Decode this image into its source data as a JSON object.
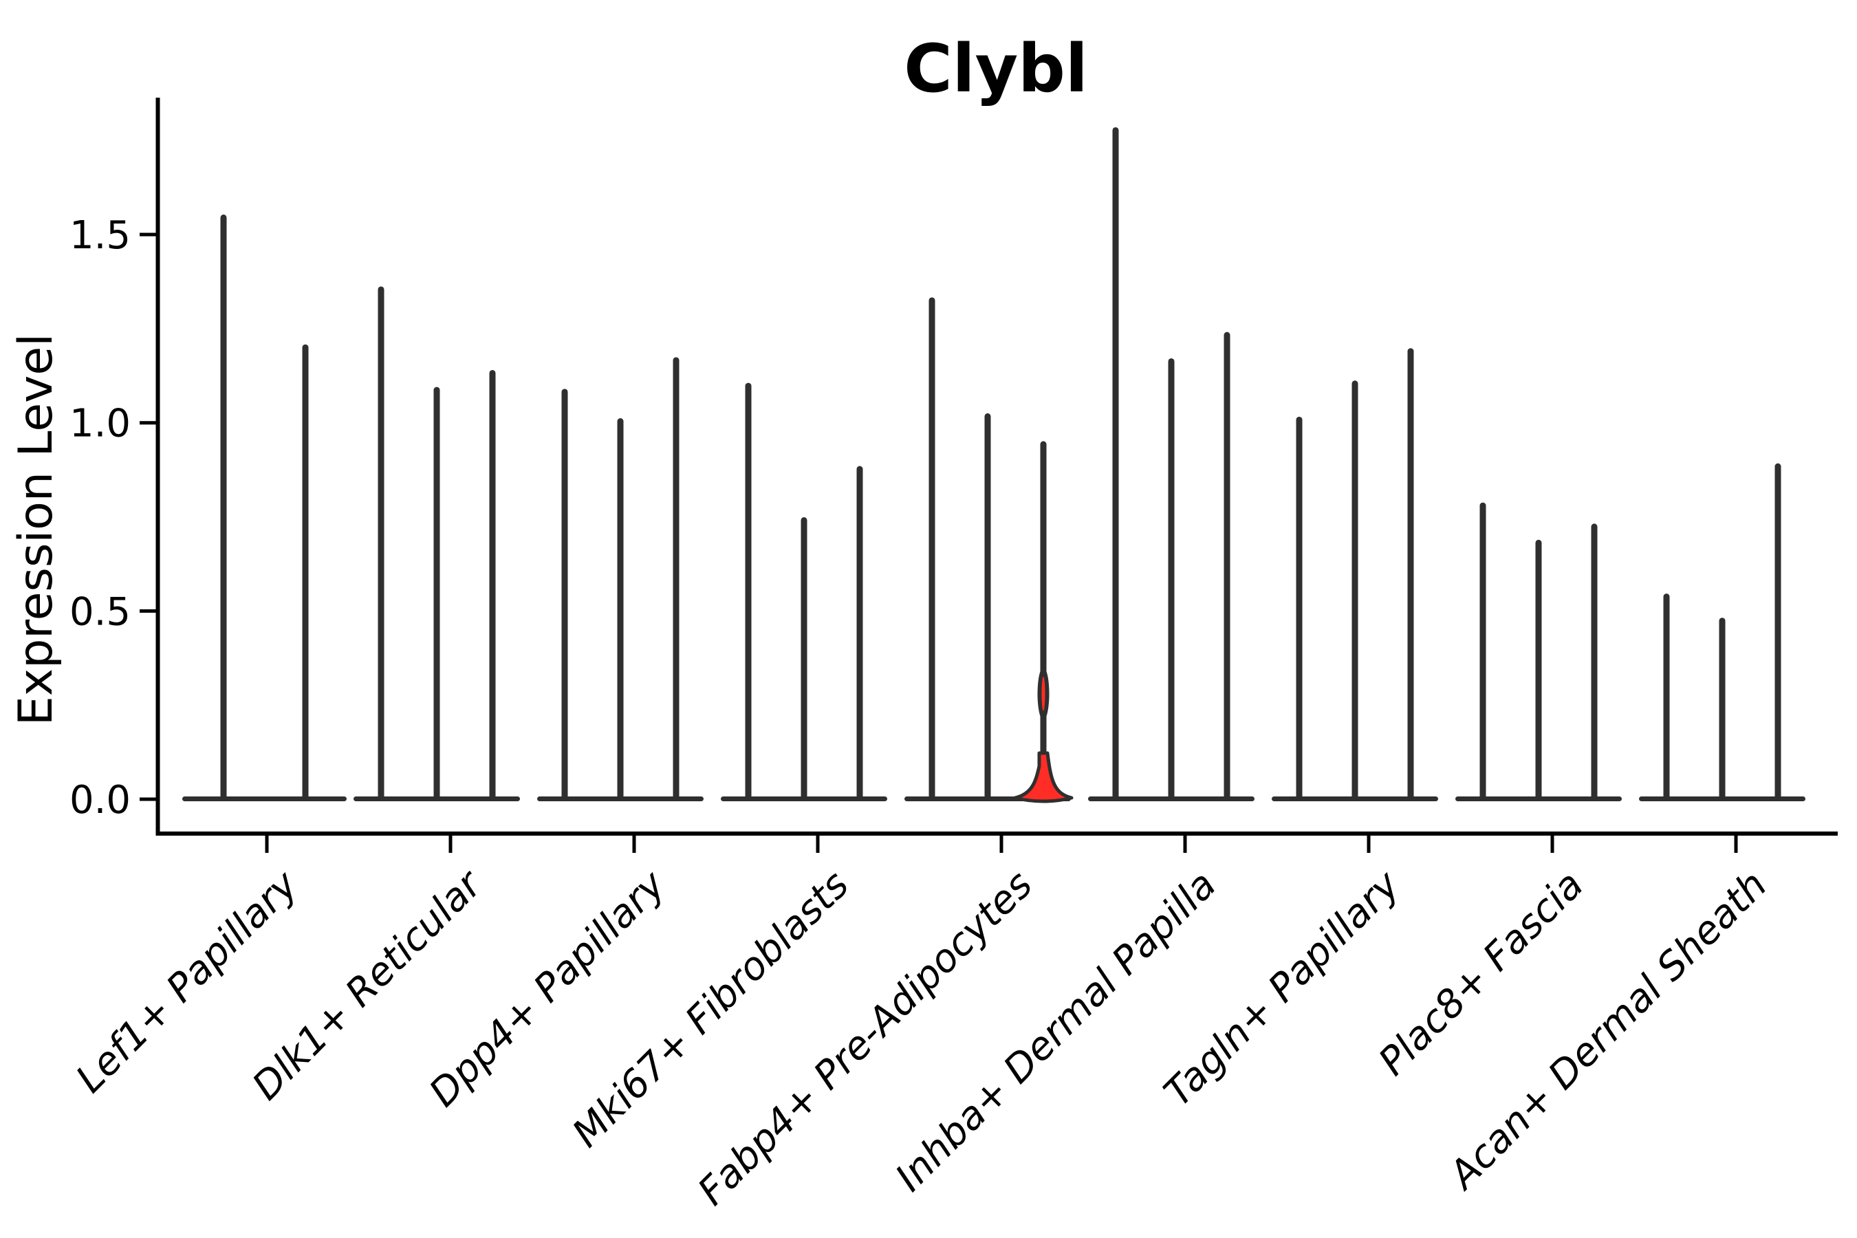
{
  "chart_data": {
    "type": "violin",
    "title": "Clybl",
    "ylabel": "Expression Level",
    "yticks": [
      "0.0",
      "0.5",
      "1.0",
      "1.5"
    ],
    "ylim": [
      -0.09,
      1.86
    ],
    "grid": false,
    "legend": null,
    "categories": [
      "Lef1+ Papillary",
      "Dlk1+ Reticular",
      "Dpp4+ Papillary",
      "Mki67+ Fibroblasts",
      "Fabp4+ Pre-Adipocytes",
      "Inhba+ Dermal Papilla",
      "Tagln+ Papillary",
      "Plac8+ Fascia",
      "Acan+ Dermal Sheath"
    ],
    "series": [
      {
        "category": "Lef1+ Papillary",
        "violins": [
          {
            "max": 1.545
          },
          {
            "max": 1.2
          }
        ]
      },
      {
        "category": "Dlk1+ Reticular",
        "violins": [
          {
            "max": 1.354
          },
          {
            "max": 1.087
          },
          {
            "max": 1.132
          }
        ]
      },
      {
        "category": "Dpp4+ Papillary",
        "violins": [
          {
            "max": 1.082
          },
          {
            "max": 1.004
          },
          {
            "max": 1.166
          }
        ]
      },
      {
        "category": "Mki67+ Fibroblasts",
        "violins": [
          {
            "max": 1.098
          },
          {
            "max": 0.741
          },
          {
            "max": 0.877
          }
        ]
      },
      {
        "category": "Fabp4+ Pre-Adipocytes",
        "violins": [
          {
            "max": 1.325
          },
          {
            "max": 1.017
          },
          {
            "max": 0.943,
            "highlight": true,
            "bulge_range": [
              0.21,
              0.35
            ],
            "base_max": 0.06
          }
        ]
      },
      {
        "category": "Inhba+ Dermal Papilla",
        "violins": [
          {
            "max": 1.777
          },
          {
            "max": 1.163
          },
          {
            "max": 1.233
          }
        ]
      },
      {
        "category": "Tagln+ Papillary",
        "violins": [
          {
            "max": 1.008
          },
          {
            "max": 1.104
          },
          {
            "max": 1.19
          }
        ]
      },
      {
        "category": "Plac8+ Fascia",
        "violins": [
          {
            "max": 0.78
          },
          {
            "max": 0.681
          },
          {
            "max": 0.724
          }
        ]
      },
      {
        "category": "Acan+ Dermal Sheath",
        "violins": [
          {
            "max": 0.538
          },
          {
            "max": 0.474
          },
          {
            "max": 0.884
          }
        ]
      }
    ],
    "colors": {
      "violin": "#2f2f2f",
      "highlight_fill": "#ff2d26",
      "axis": "#000000",
      "background": "#ffffff"
    }
  }
}
